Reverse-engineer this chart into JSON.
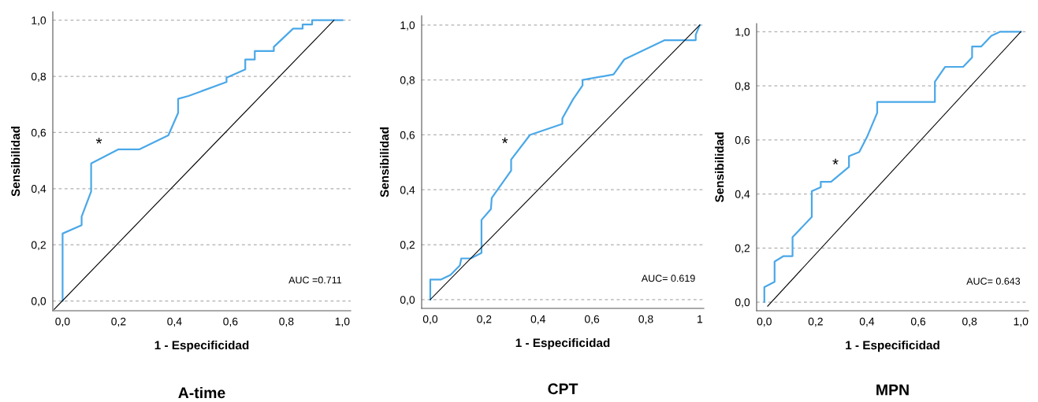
{
  "chart_data": [
    {
      "type": "line",
      "title": "A-time",
      "xlabel": "1 - Especificidad",
      "ylabel": "Sensibilidad",
      "grid": "y",
      "legend": false,
      "marker": "none",
      "line_style": "solid",
      "xlim": [
        -0.035,
        1.03
      ],
      "ylim": [
        -0.035,
        1.03
      ],
      "xticks": [
        {
          "value": 0,
          "label": "0,0"
        },
        {
          "value": 0.2,
          "label": "0,2"
        },
        {
          "value": 0.4,
          "label": "0,4"
        },
        {
          "value": 0.6,
          "label": "0,6"
        },
        {
          "value": 0.8,
          "label": "0,8"
        },
        {
          "value": 1,
          "label": "1,0"
        }
      ],
      "yticks": [
        {
          "value": 0,
          "label": "0,0"
        },
        {
          "value": 0.2,
          "label": "0,2"
        },
        {
          "value": 0.4,
          "label": "0,4"
        },
        {
          "value": 0.6,
          "label": "0,6"
        },
        {
          "value": 0.8,
          "label": "0,8"
        },
        {
          "value": 1,
          "label": "1,0"
        }
      ],
      "series": [
        {
          "color": "#4aa8e8",
          "x": [
            0,
            0,
            0.068,
            0.068,
            0.102,
            0.102,
            0.2,
            0.275,
            0.378,
            0.413,
            0.413,
            0.45,
            0.586,
            0.586,
            0.653,
            0.653,
            0.687,
            0.687,
            0.755,
            0.755,
            0.824,
            0.858,
            0.858,
            0.892,
            0.892,
            1.0
          ],
          "values": [
            0,
            0.24,
            0.27,
            0.3,
            0.39,
            0.49,
            0.54,
            0.54,
            0.59,
            0.67,
            0.72,
            0.73,
            0.78,
            0.795,
            0.825,
            0.86,
            0.86,
            0.89,
            0.89,
            0.905,
            0.97,
            0.97,
            0.985,
            0.985,
            1.0,
            1.0
          ]
        },
        {
          "color": "#000000",
          "x": [
            -0.03,
            0.97
          ],
          "values": [
            -0.03,
            1.0
          ]
        }
      ],
      "annotations": [
        "*",
        "AUC =0.711"
      ]
    },
    {
      "type": "line",
      "title": "CPT",
      "xlabel": "1 - Especificidad",
      "ylabel": "Sensibilidad",
      "grid": "y",
      "legend": false,
      "marker": "none",
      "line_style": "solid",
      "xlim": [
        -0.032,
        1.015
      ],
      "ylim": [
        -0.032,
        1.034
      ],
      "xticks": [
        {
          "value": 0,
          "label": "0,0"
        },
        {
          "value": 0.2,
          "label": "0,2"
        },
        {
          "value": 0.4,
          "label": "0,4"
        },
        {
          "value": 0.6,
          "label": "0,6"
        },
        {
          "value": 0.8,
          "label": "0,8"
        },
        {
          "value": 1,
          "label": "1"
        }
      ],
      "yticks": [
        {
          "value": 0,
          "label": "0,0"
        },
        {
          "value": 0.2,
          "label": "0,2"
        },
        {
          "value": 0.4,
          "label": "0,4"
        },
        {
          "value": 0.6,
          "label": "0,6"
        },
        {
          "value": 0.8,
          "label": "0,8"
        },
        {
          "value": 1,
          "label": "1,0"
        }
      ],
      "series": [
        {
          "color": "#4aa8e8",
          "x": [
            0,
            0,
            0.04,
            0.075,
            0.11,
            0.115,
            0.15,
            0.19,
            0.19,
            0.225,
            0.228,
            0.3,
            0.3,
            0.37,
            0.49,
            0.49,
            0.53,
            0.565,
            0.565,
            0.68,
            0.72,
            0.87,
            0.985,
            0.985,
            1.0
          ],
          "values": [
            0,
            0.073,
            0.073,
            0.09,
            0.125,
            0.15,
            0.15,
            0.17,
            0.29,
            0.33,
            0.37,
            0.47,
            0.51,
            0.6,
            0.64,
            0.66,
            0.73,
            0.78,
            0.8,
            0.82,
            0.875,
            0.945,
            0.945,
            0.965,
            1.0
          ]
        },
        {
          "color": "#000000",
          "x": [
            0,
            1
          ],
          "values": [
            0,
            1
          ]
        }
      ],
      "annotations": [
        "*",
        "AUC= 0.619"
      ]
    },
    {
      "type": "line",
      "title": "MPN",
      "xlabel": "1 - Especificidad",
      "ylabel": "Sensibilidad",
      "grid": "y",
      "legend": false,
      "marker": "none",
      "line_style": "solid",
      "xlim": [
        -0.03,
        1.03
      ],
      "ylim": [
        -0.032,
        1.03
      ],
      "xticks": [
        {
          "value": 0,
          "label": "0,0"
        },
        {
          "value": 0.2,
          "label": "0,2"
        },
        {
          "value": 0.4,
          "label": "0,4"
        },
        {
          "value": 0.6,
          "label": "0,6"
        },
        {
          "value": 0.8,
          "label": "0,8"
        },
        {
          "value": 1,
          "label": "1,0"
        }
      ],
      "yticks": [
        {
          "value": 0,
          "label": "0,0"
        },
        {
          "value": 0.2,
          "label": "0,2"
        },
        {
          "value": 0.4,
          "label": "0,4"
        },
        {
          "value": 0.6,
          "label": "0,6"
        },
        {
          "value": 0.8,
          "label": "0,8"
        },
        {
          "value": 1,
          "label": "1,0"
        }
      ],
      "series": [
        {
          "color": "#4aa8e8",
          "x": [
            0,
            0,
            0.04,
            0.04,
            0.075,
            0.11,
            0.11,
            0.185,
            0.185,
            0.22,
            0.22,
            0.26,
            0.33,
            0.33,
            0.37,
            0.4,
            0.44,
            0.44,
            0.665,
            0.665,
            0.705,
            0.775,
            0.81,
            0.81,
            0.845,
            0.885,
            0.92,
            1.0
          ],
          "values": [
            0,
            0.055,
            0.075,
            0.15,
            0.17,
            0.17,
            0.24,
            0.315,
            0.41,
            0.425,
            0.445,
            0.445,
            0.5,
            0.54,
            0.555,
            0.61,
            0.7,
            0.74,
            0.74,
            0.815,
            0.87,
            0.87,
            0.905,
            0.945,
            0.945,
            0.985,
            1.0,
            1.0
          ]
        },
        {
          "color": "#000000",
          "x": [
            0.013,
            1.0
          ],
          "values": [
            -0.015,
            1.0
          ]
        }
      ],
      "annotations": [
        "*",
        "AUC= 0.643"
      ]
    }
  ]
}
